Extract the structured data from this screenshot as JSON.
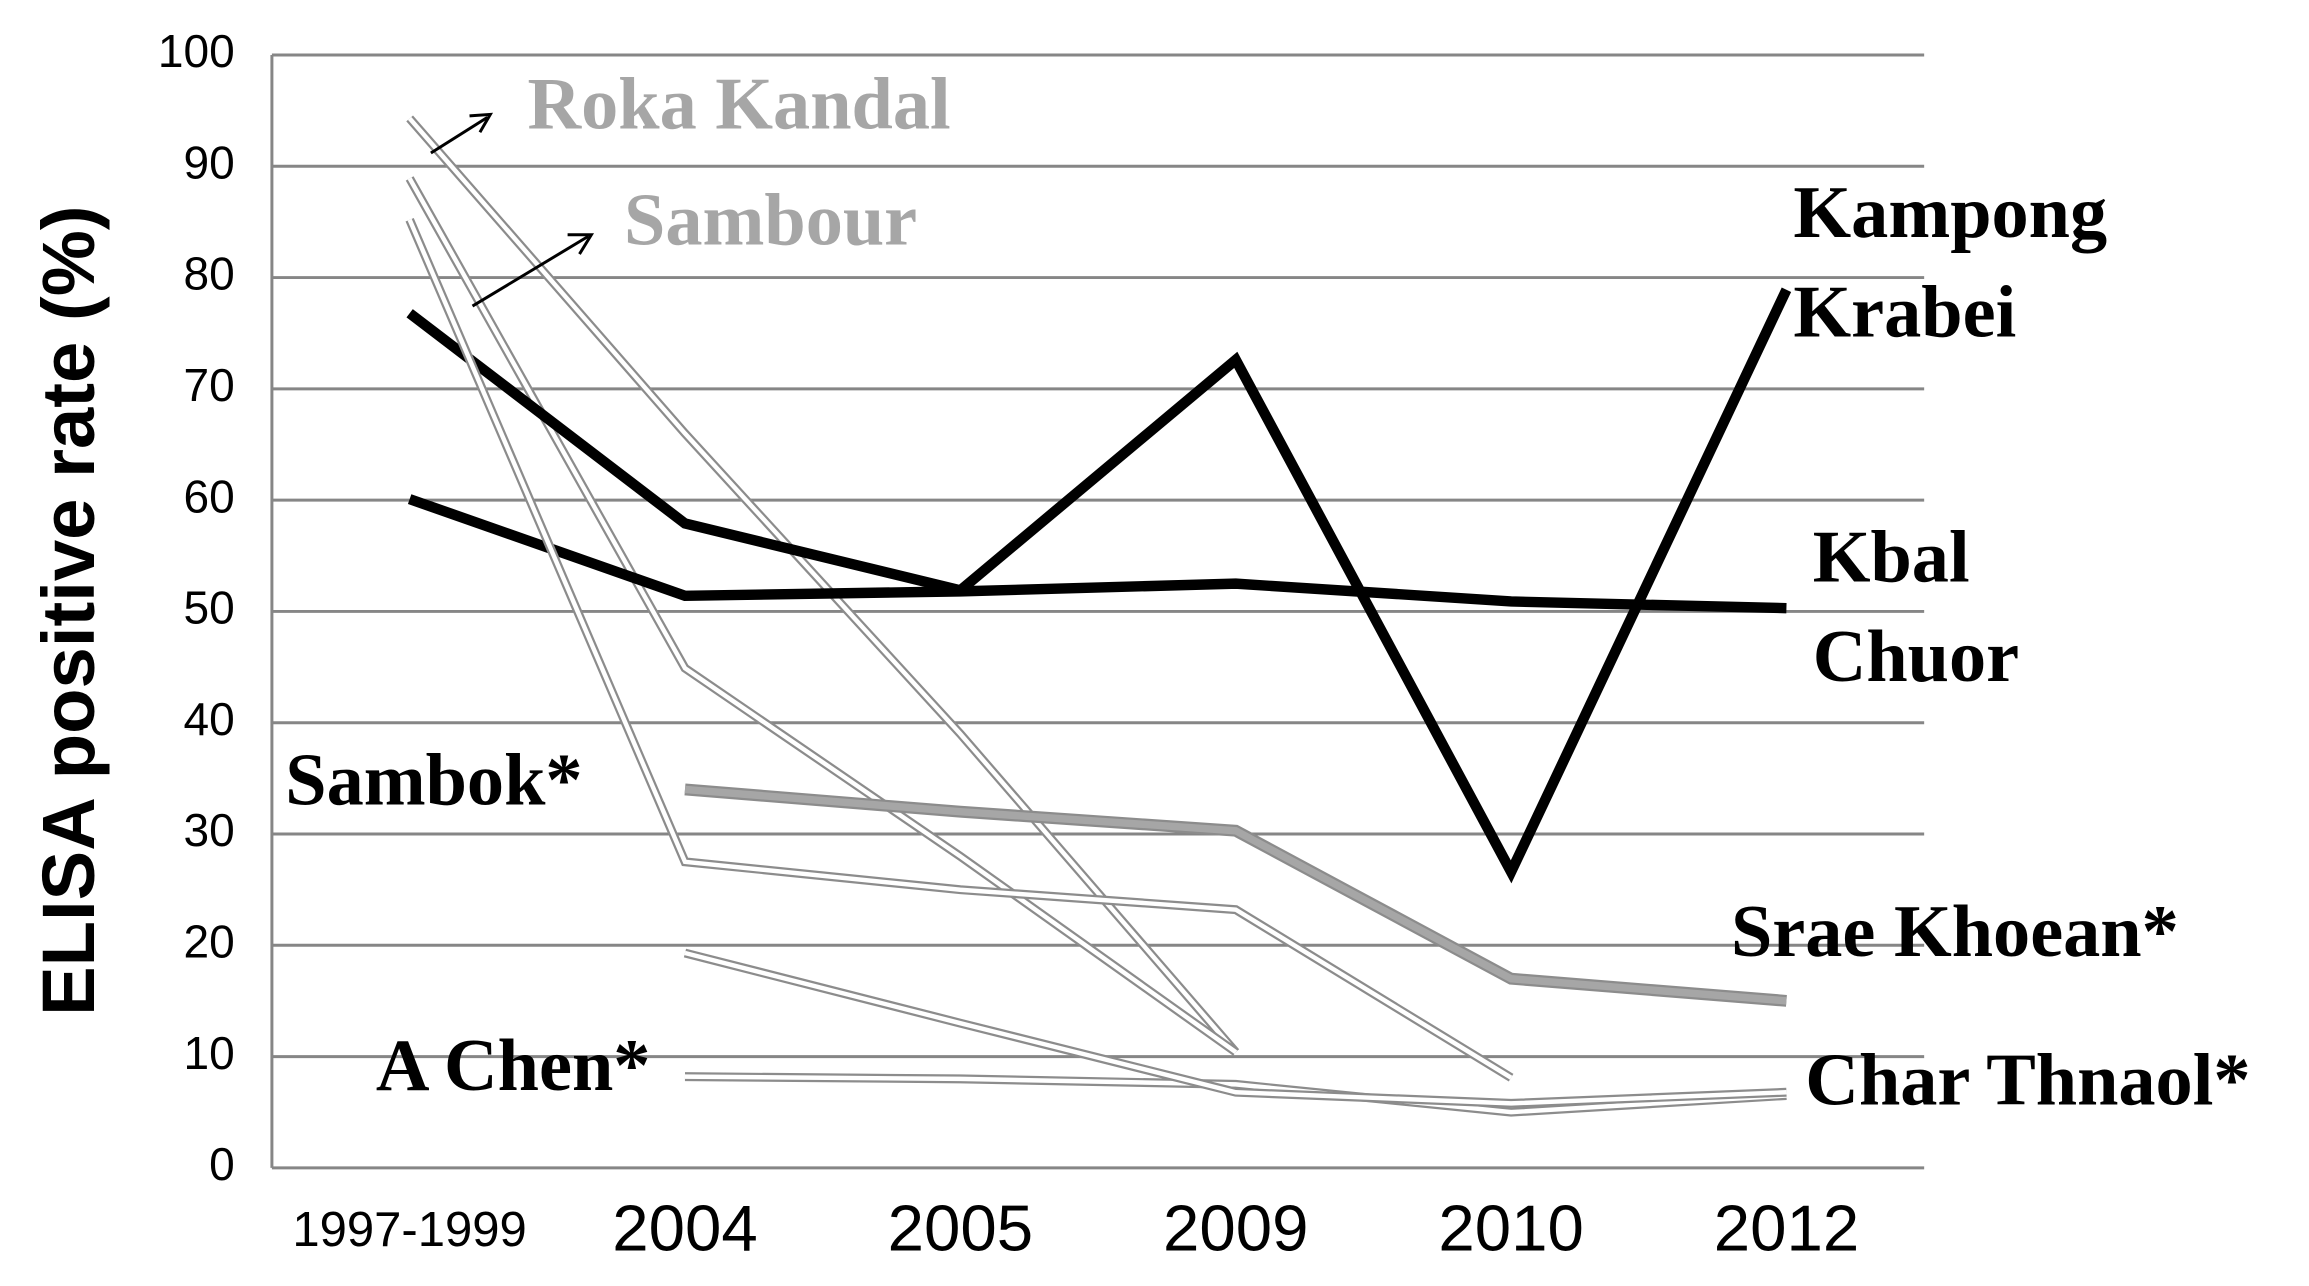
{
  "chart_data": {
    "type": "line",
    "y_label": "ELISA positive rate (%)",
    "categories": [
      "1997-1999",
      "2004",
      "2005",
      "2009",
      "2010",
      "2012"
    ],
    "ylim": [
      0,
      100
    ],
    "yticks": [
      0,
      10,
      20,
      30,
      40,
      50,
      60,
      70,
      80,
      90,
      100
    ],
    "grid": true,
    "series": [
      {
        "name": "Roka Kandal",
        "color": "#ffffff",
        "label_color": "#a6a6a6",
        "style": "outlined",
        "values": [
          94.3,
          66,
          39,
          10.4,
          null,
          null
        ]
      },
      {
        "name": "Sambour",
        "color": "#ffffff",
        "label_color": "#a6a6a6",
        "style": "outlined",
        "values": [
          88.9,
          44.9,
          28,
          10.4,
          null,
          null
        ]
      },
      {
        "name": "Kampong Krabei",
        "color": "#000000",
        "label_color": "#000000",
        "style": "thick",
        "values": [
          76.8,
          57.9,
          51.9,
          72.6,
          26.6,
          78.9
        ]
      },
      {
        "name": "Kbal Chuor",
        "color": "#000000",
        "label_color": "#000000",
        "style": "thick",
        "values": [
          60.1,
          51.4,
          51.8,
          52.5,
          50.9,
          50.3
        ]
      },
      {
        "name": "Sambok*",
        "color": "#ffffff",
        "label_color": "#000000",
        "style": "outlined",
        "values": [
          85.2,
          27.5,
          25,
          23.2,
          8.1,
          null
        ]
      },
      {
        "name": "Srae Khoean*",
        "color": "#a6a6a6",
        "label_color": "#000000",
        "style": "medium",
        "values": [
          null,
          34,
          32,
          30.3,
          17,
          15
        ]
      },
      {
        "name": "A Chen*",
        "color": "#ffffff",
        "label_color": "#000000",
        "style": "outlined",
        "values": [
          null,
          8.2,
          8,
          7.5,
          5,
          6.5
        ]
      },
      {
        "name": "Char Thnaol*",
        "color": "#ffffff",
        "label_color": "#000000",
        "style": "outlined",
        "values": [
          null,
          19.3,
          13,
          6.8,
          5.8,
          6.8
        ]
      }
    ]
  }
}
